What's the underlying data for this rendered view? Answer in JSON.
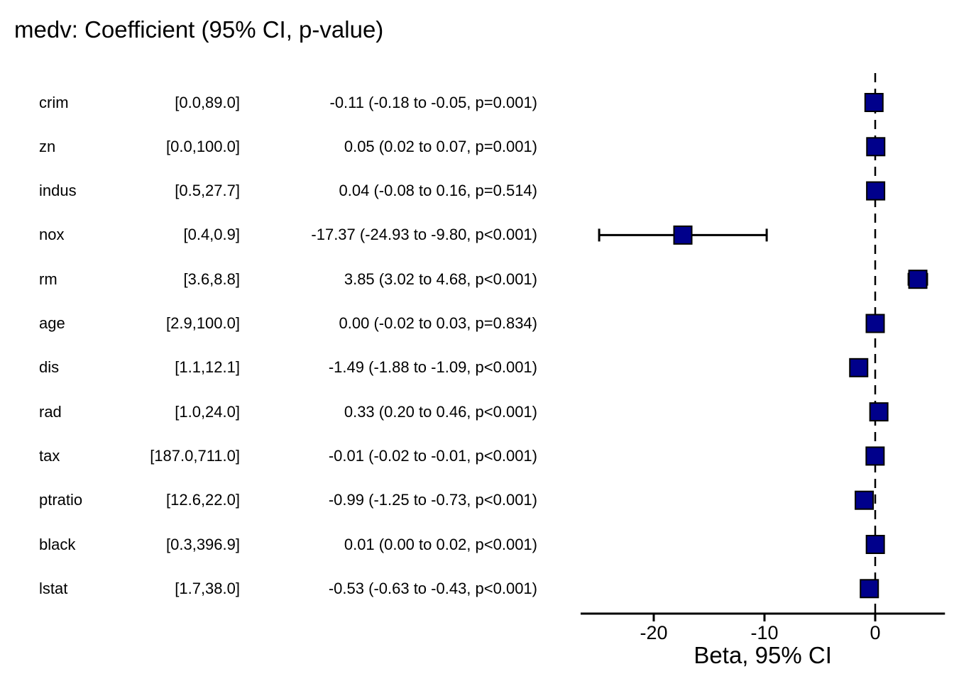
{
  "chart_data": {
    "type": "forest",
    "title": "medv: Coefficient (95% CI, p-value)",
    "xlabel": "Beta, 95% CI",
    "xlim": [
      -26.6,
      6.3
    ],
    "x_ticks": [
      "-20",
      "-10",
      "0"
    ],
    "x_tick_values": [
      -20,
      -10,
      0
    ],
    "reference_line": 0,
    "grid": false,
    "marker_color": "#00008B",
    "marker_border_color": "#000000",
    "line_color": "#000000",
    "rows": [
      {
        "variable": "crim",
        "range": "[0.0,89.0]",
        "estimate_label": "-0.11 (-0.18 to -0.05, p=0.001)",
        "coef": -0.11,
        "ci_low": -0.18,
        "ci_high": -0.05,
        "p": "=0.001"
      },
      {
        "variable": "zn",
        "range": "[0.0,100.0]",
        "estimate_label": "0.05 (0.02 to 0.07, p=0.001)",
        "coef": 0.05,
        "ci_low": 0.02,
        "ci_high": 0.07,
        "p": "=0.001"
      },
      {
        "variable": "indus",
        "range": "[0.5,27.7]",
        "estimate_label": "0.04 (-0.08 to 0.16, p=0.514)",
        "coef": 0.04,
        "ci_low": -0.08,
        "ci_high": 0.16,
        "p": "=0.514"
      },
      {
        "variable": "nox",
        "range": "[0.4,0.9]",
        "estimate_label": "-17.37 (-24.93 to -9.80, p<0.001)",
        "coef": -17.37,
        "ci_low": -24.93,
        "ci_high": -9.8,
        "p": "<0.001"
      },
      {
        "variable": "rm",
        "range": "[3.6,8.8]",
        "estimate_label": "3.85 (3.02 to 4.68, p<0.001)",
        "coef": 3.85,
        "ci_low": 3.02,
        "ci_high": 4.68,
        "p": "<0.001"
      },
      {
        "variable": "age",
        "range": "[2.9,100.0]",
        "estimate_label": "0.00 (-0.02 to 0.03, p=0.834)",
        "coef": 0.0,
        "ci_low": -0.02,
        "ci_high": 0.03,
        "p": "=0.834"
      },
      {
        "variable": "dis",
        "range": "[1.1,12.1]",
        "estimate_label": "-1.49 (-1.88 to -1.09, p<0.001)",
        "coef": -1.49,
        "ci_low": -1.88,
        "ci_high": -1.09,
        "p": "<0.001"
      },
      {
        "variable": "rad",
        "range": "[1.0,24.0]",
        "estimate_label": "0.33 (0.20 to 0.46, p<0.001)",
        "coef": 0.33,
        "ci_low": 0.2,
        "ci_high": 0.46,
        "p": "<0.001"
      },
      {
        "variable": "tax",
        "range": "[187.0,711.0]",
        "estimate_label": "-0.01 (-0.02 to -0.01, p<0.001)",
        "coef": -0.01,
        "ci_low": -0.02,
        "ci_high": -0.01,
        "p": "<0.001"
      },
      {
        "variable": "ptratio",
        "range": "[12.6,22.0]",
        "estimate_label": "-0.99 (-1.25 to -0.73, p<0.001)",
        "coef": -0.99,
        "ci_low": -1.25,
        "ci_high": -0.73,
        "p": "<0.001"
      },
      {
        "variable": "black",
        "range": "[0.3,396.9]",
        "estimate_label": "0.01 (0.00 to 0.02, p<0.001)",
        "coef": 0.01,
        "ci_low": 0.0,
        "ci_high": 0.02,
        "p": "<0.001"
      },
      {
        "variable": "lstat",
        "range": "[1.7,38.0]",
        "estimate_label": "-0.53 (-0.63 to -0.43, p<0.001)",
        "coef": -0.53,
        "ci_low": -0.63,
        "ci_high": -0.43,
        "p": "<0.001"
      }
    ]
  }
}
